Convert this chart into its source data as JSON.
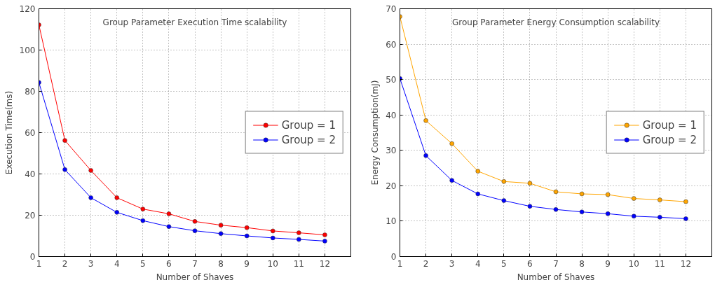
{
  "chart_data": [
    {
      "type": "line",
      "title": "Group Parameter Execution Time scalability",
      "xlabel": "Number of Shaves",
      "ylabel": "Execution Time(ms)",
      "x": [
        1,
        2,
        3,
        4,
        5,
        6,
        7,
        8,
        9,
        10,
        11,
        12
      ],
      "xlim": [
        1,
        13
      ],
      "xticks": [
        1,
        2,
        3,
        4,
        5,
        6,
        7,
        8,
        9,
        10,
        11,
        12
      ],
      "ylim": [
        0,
        120
      ],
      "yticks": [
        0,
        20,
        40,
        60,
        80,
        100,
        120
      ],
      "grid": true,
      "legend": "right",
      "marker": "circle",
      "line_style": "solid",
      "series": [
        {
          "name": "Group = 1",
          "color": "#ff0000",
          "values": [
            112.2,
            56.2,
            41.7,
            28.5,
            23.0,
            20.7,
            17.0,
            15.2,
            14.0,
            12.4,
            11.5,
            10.5
          ]
        },
        {
          "name": "Group = 2",
          "color": "#0000ff",
          "values": [
            84.3,
            42.1,
            28.5,
            21.4,
            17.4,
            14.5,
            12.5,
            11.1,
            10.0,
            9.0,
            8.3,
            7.5
          ]
        }
      ]
    },
    {
      "type": "line",
      "title": "Group Parameter Energy Consumption scalability",
      "xlabel": "Number of Shaves",
      "ylabel": "Energy Consumption(mJ)",
      "x": [
        1,
        2,
        3,
        4,
        5,
        6,
        7,
        8,
        9,
        10,
        11,
        12
      ],
      "xlim": [
        1,
        13
      ],
      "xticks": [
        1,
        2,
        3,
        4,
        5,
        6,
        7,
        8,
        9,
        10,
        11,
        12
      ],
      "ylim": [
        0,
        70
      ],
      "yticks": [
        0,
        10,
        20,
        30,
        40,
        50,
        60,
        70
      ],
      "grid": true,
      "legend": "right",
      "marker": "circle",
      "line_style": "solid",
      "series": [
        {
          "name": "Group = 1",
          "color": "#ffa500",
          "values": [
            67.8,
            38.4,
            31.9,
            24.1,
            21.2,
            20.7,
            18.3,
            17.7,
            17.5,
            16.4,
            16.0,
            15.5
          ]
        },
        {
          "name": "Group = 2",
          "color": "#0000ff",
          "values": [
            50.3,
            28.5,
            21.5,
            17.7,
            15.8,
            14.2,
            13.3,
            12.6,
            12.1,
            11.4,
            11.1,
            10.7
          ]
        }
      ]
    }
  ]
}
